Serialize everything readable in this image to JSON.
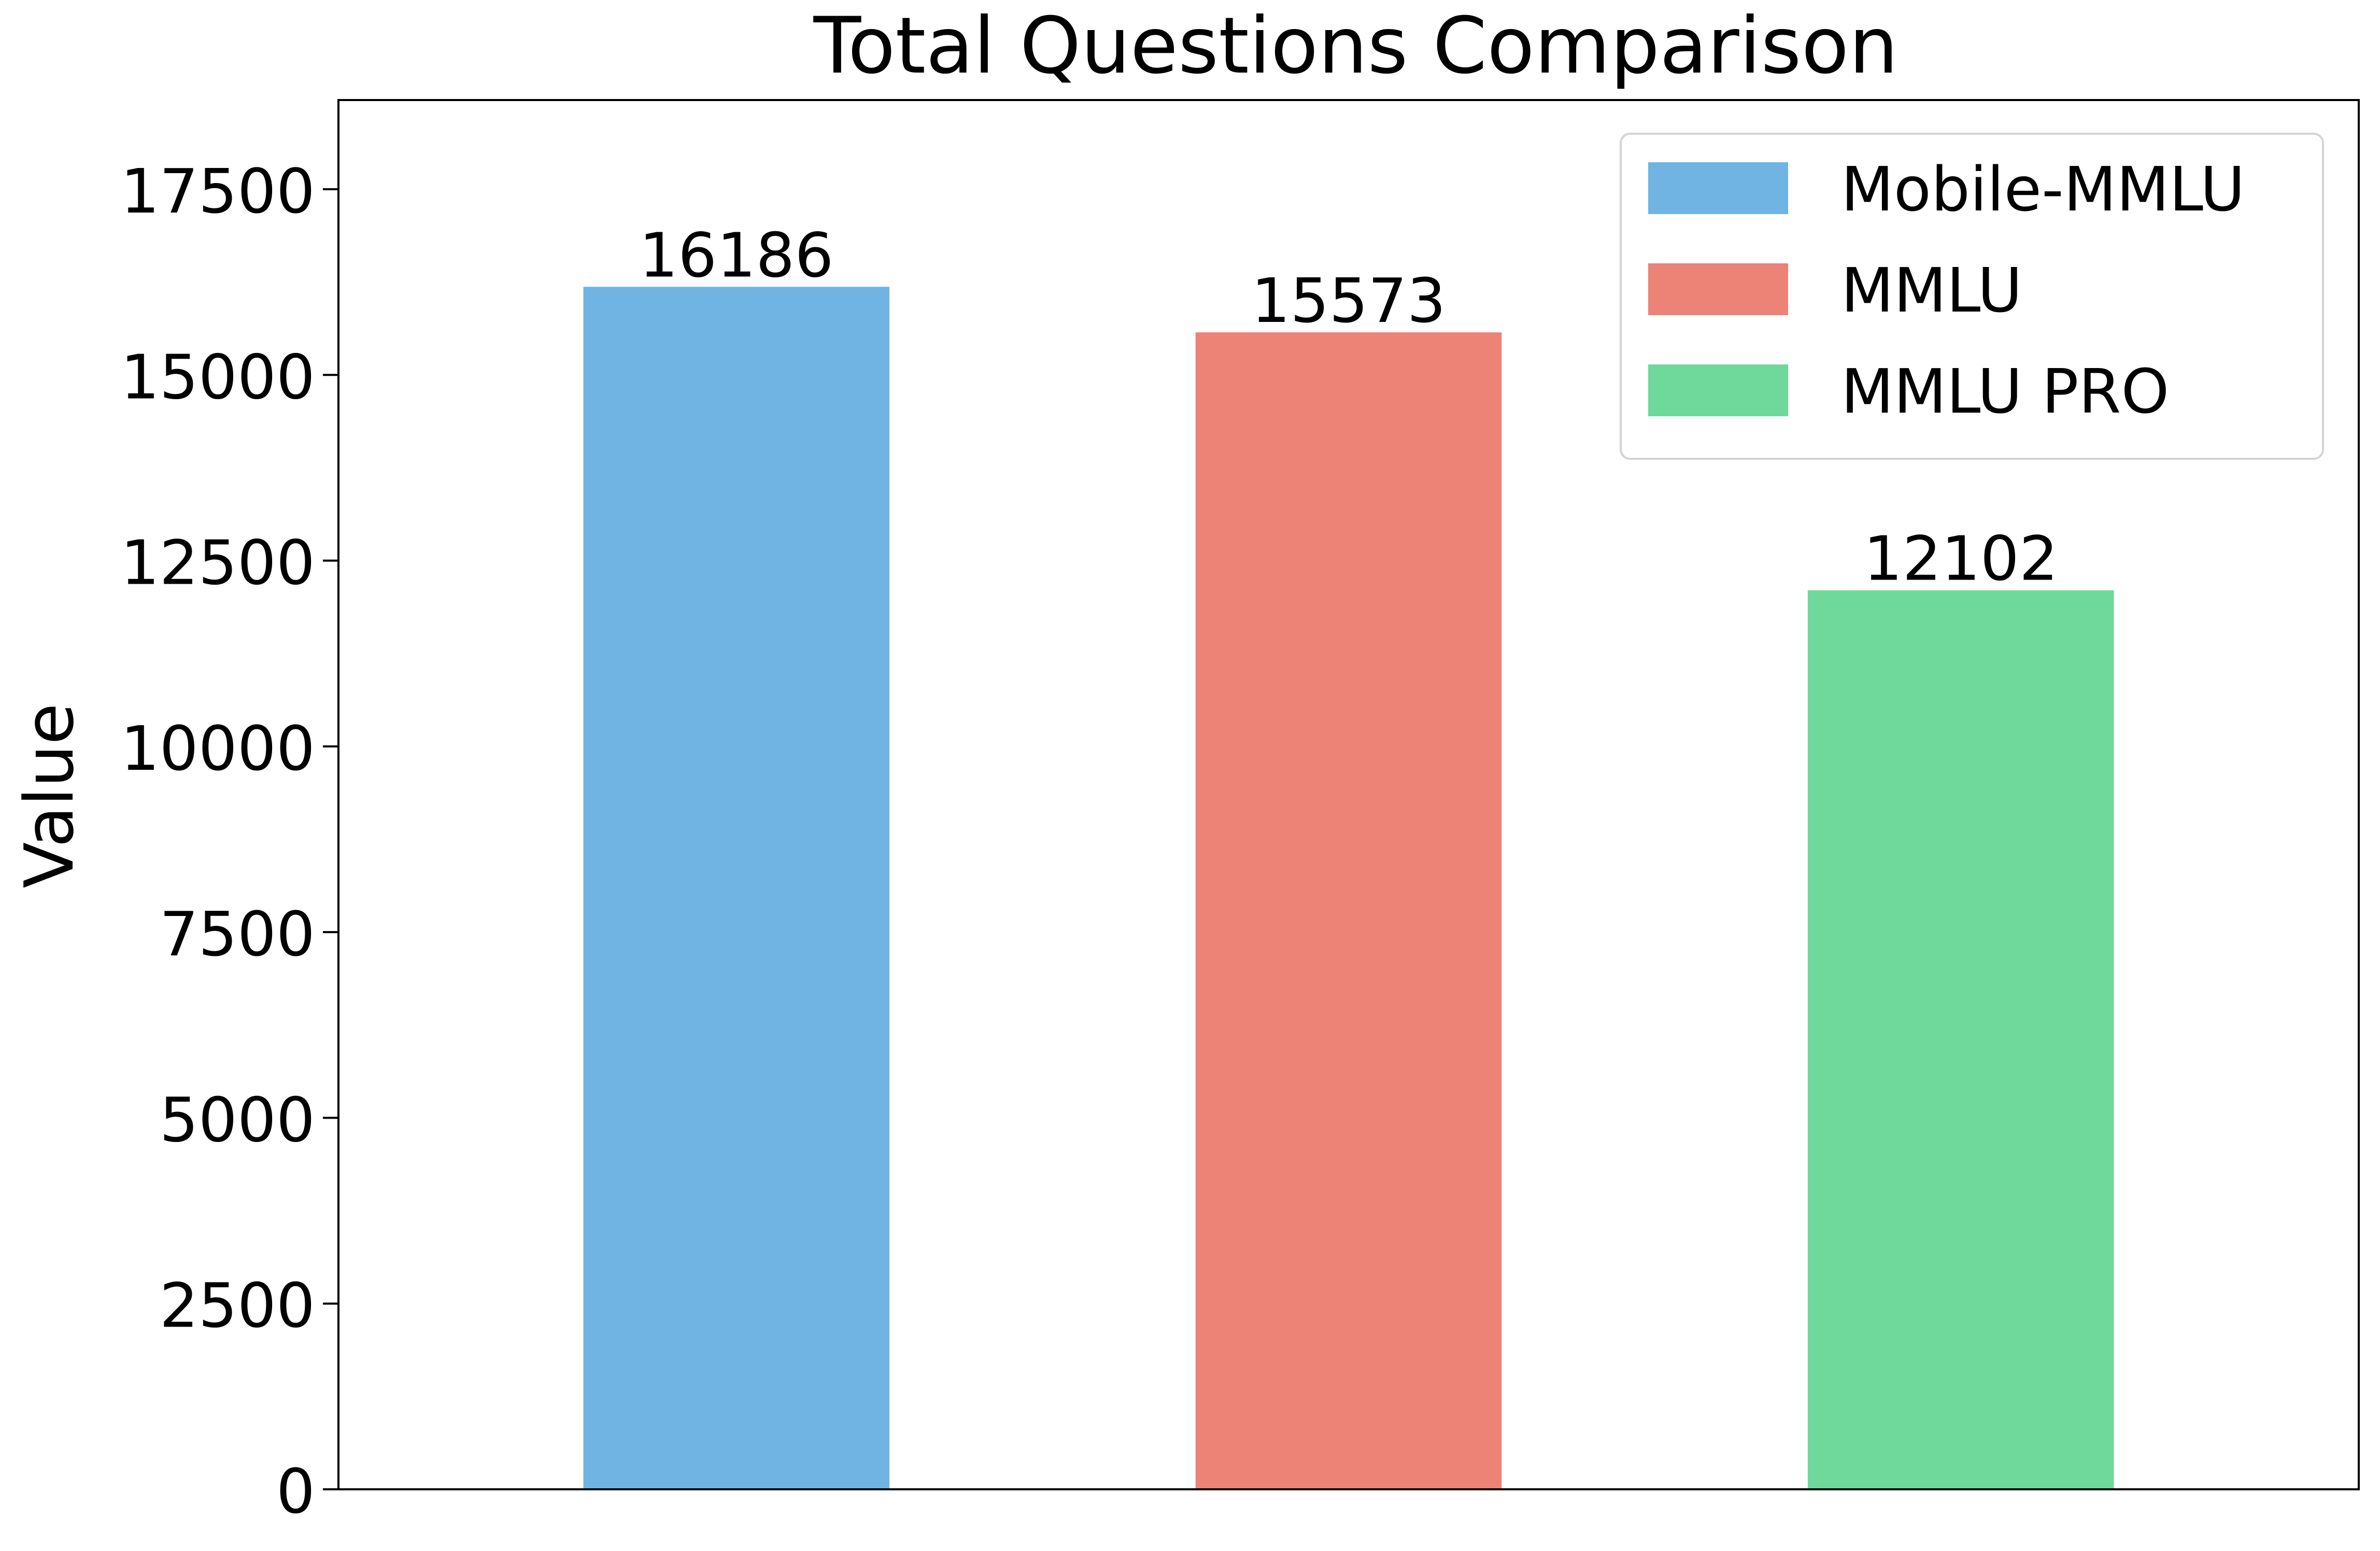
{
  "chart_data": {
    "type": "bar",
    "title": "Total Questions Comparison",
    "xlabel": "",
    "ylabel": "Value",
    "ylim": [
      0,
      18700
    ],
    "yticks": [
      0,
      2500,
      5000,
      7500,
      10000,
      12500,
      15000,
      17500
    ],
    "grid": false,
    "legend_position": "top-right",
    "series": [
      {
        "name": "Mobile-MMLU",
        "value": 16186,
        "color": "#6fb4e3"
      },
      {
        "name": "MMLU",
        "value": 15573,
        "color": "#ed8277"
      },
      {
        "name": "MMLU PRO",
        "value": 12102,
        "color": "#6ed99b"
      }
    ]
  }
}
